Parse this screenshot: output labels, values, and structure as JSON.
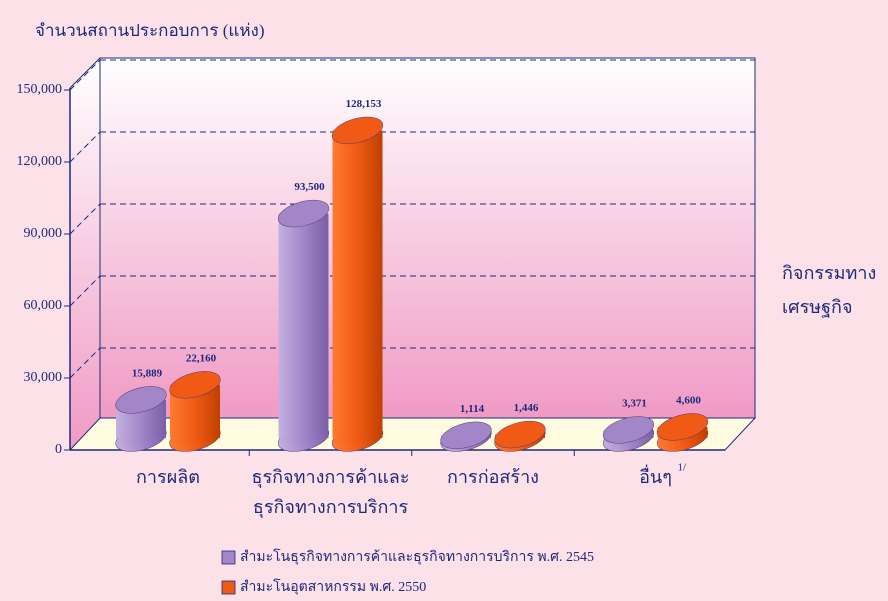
{
  "chart_data": {
    "type": "bar3d",
    "ylabel": "จำนวนสถานประกอบการ (แห่ง)",
    "xlabel": "กิจกรรมทาง เศรษฐกิจ",
    "categories": [
      "การผลิต",
      "ธุรกิจทางการค้าและ ธุรกิจทางการบริการ",
      "การก่อสร้าง",
      "อื่นๆ"
    ],
    "footnote_mark": "1/",
    "series": [
      {
        "name": "สำมะโนธุรกิจทางการค้าและธุรกิจทางการบริการ พ.ศ. 2545",
        "color": "#a286c8",
        "values": [
          15889,
          93500,
          1114,
          3371
        ],
        "value_labels": [
          "15,889",
          "93,500",
          "1,114",
          "3,371"
        ]
      },
      {
        "name": "สำมะโนอุตสาหกรรม พ.ศ. 2550",
        "color": "#f05a14",
        "values": [
          22160,
          128153,
          1446,
          4600
        ],
        "value_labels": [
          "22,160",
          "128,153",
          "1,446",
          "4,600"
        ]
      }
    ],
    "ylim": [
      0,
      150000
    ],
    "yticks": [
      0,
      {
        "value": 30000,
        "label": "30,000"
      },
      {
        "value": 60000,
        "label": "60,000"
      },
      {
        "value": 90000,
        "label": "90,000"
      },
      {
        "value": 120000,
        "label": "120,000"
      },
      {
        "value": 150000,
        "label": "150,000"
      }
    ],
    "grid": true
  }
}
